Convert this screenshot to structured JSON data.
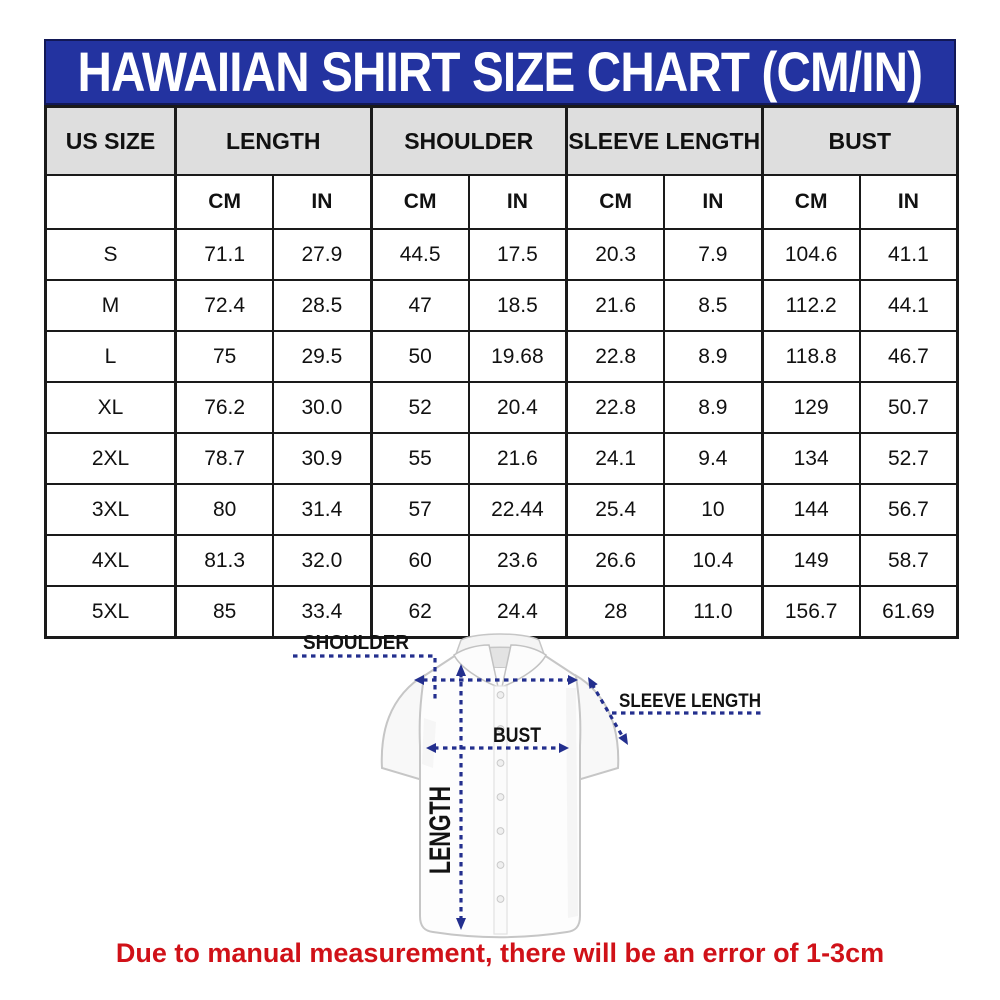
{
  "title": "HAWAIIAN SHIRT SIZE CHART (CM/IN)",
  "colors": {
    "title_bg": "#2333A0",
    "header_bg": "#DEDEDE",
    "annotation": "#232F8E",
    "footer_text": "#D01118"
  },
  "table": {
    "group_headers": [
      "US SIZE",
      "LENGTH",
      "SHOULDER",
      "SLEEVE LENGTH",
      "BUST"
    ],
    "unit_headers": [
      "CM",
      "IN",
      "CM",
      "IN",
      "CM",
      "IN",
      "CM",
      "IN"
    ],
    "rows": [
      {
        "size": "S",
        "values": [
          "71.1",
          "27.9",
          "44.5",
          "17.5",
          "20.3",
          "7.9",
          "104.6",
          "41.1"
        ]
      },
      {
        "size": "M",
        "values": [
          "72.4",
          "28.5",
          "47",
          "18.5",
          "21.6",
          "8.5",
          "112.2",
          "44.1"
        ]
      },
      {
        "size": "L",
        "values": [
          "75",
          "29.5",
          "50",
          "19.68",
          "22.8",
          "8.9",
          "118.8",
          "46.7"
        ]
      },
      {
        "size": "XL",
        "values": [
          "76.2",
          "30.0",
          "52",
          "20.4",
          "22.8",
          "8.9",
          "129",
          "50.7"
        ]
      },
      {
        "size": "2XL",
        "values": [
          "78.7",
          "30.9",
          "55",
          "21.6",
          "24.1",
          "9.4",
          "134",
          "52.7"
        ]
      },
      {
        "size": "3XL",
        "values": [
          "80",
          "31.4",
          "57",
          "22.44",
          "25.4",
          "10",
          "144",
          "56.7"
        ]
      },
      {
        "size": "4XL",
        "values": [
          "81.3",
          "32.0",
          "60",
          "23.6",
          "26.6",
          "10.4",
          "149",
          "58.7"
        ]
      },
      {
        "size": "5XL",
        "values": [
          "85",
          "33.4",
          "62",
          "24.4",
          "28",
          "11.0",
          "156.7",
          "61.69"
        ]
      }
    ]
  },
  "diagram": {
    "labels": {
      "shoulder": "SHOULDER",
      "sleeve_length": "SLEEVE LENGTH",
      "bust": "BUST",
      "length": "LENGTH"
    }
  },
  "footer": {
    "note": "Due to manual measurement, there will be an error of 1-3cm"
  }
}
